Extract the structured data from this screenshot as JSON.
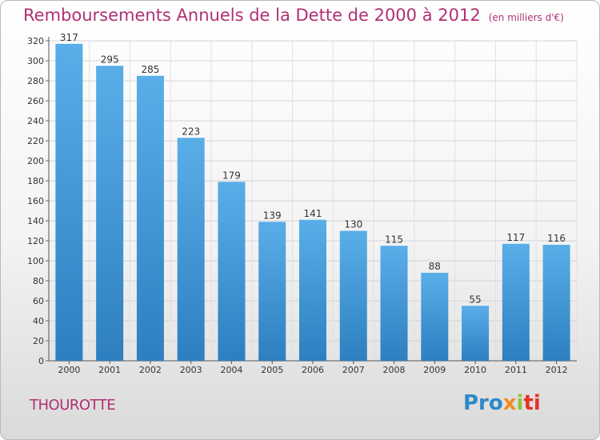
{
  "header": {
    "title": "Remboursements Annuels de la Dette de 2000 à 2012",
    "subtitle": "(en milliers d'€)"
  },
  "footer": {
    "commune": "THOUROTTE",
    "brand_parts": [
      "Pro",
      "x",
      "i",
      "ti"
    ]
  },
  "colors": {
    "title": "#b03074",
    "bar_top": "#5aaee8",
    "bar_bottom": "#2d7fc0"
  },
  "chart_data": {
    "type": "bar",
    "title": "Remboursements Annuels de la Dette de 2000 à 2012",
    "subtitle": "(en milliers d'€)",
    "categories": [
      "2000",
      "2001",
      "2002",
      "2003",
      "2004",
      "2005",
      "2006",
      "2007",
      "2008",
      "2009",
      "2010",
      "2011",
      "2012"
    ],
    "values": [
      317,
      295,
      285,
      223,
      179,
      139,
      141,
      130,
      115,
      88,
      55,
      117,
      116
    ],
    "ylim": [
      0,
      320
    ],
    "yticks": [
      0,
      20,
      40,
      60,
      80,
      100,
      120,
      140,
      160,
      180,
      200,
      220,
      240,
      260,
      280,
      300,
      320
    ],
    "grid": true,
    "data_labels": true
  }
}
